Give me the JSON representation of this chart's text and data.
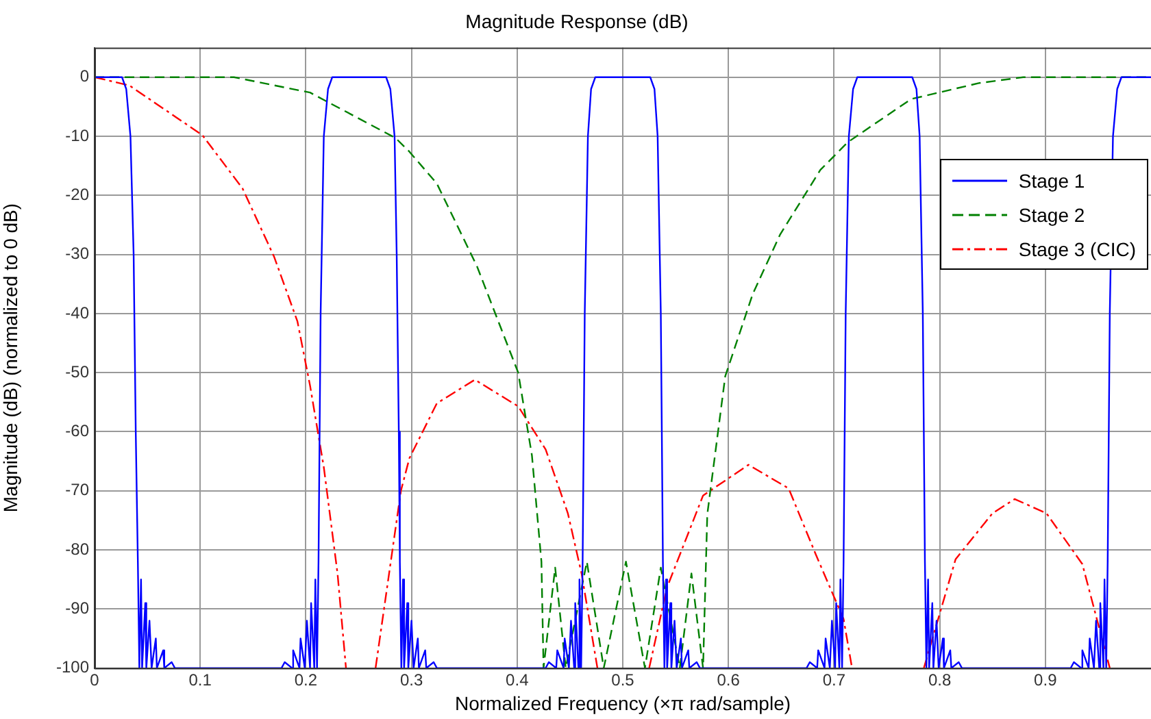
{
  "chart_data": {
    "type": "line",
    "title": "Magnitude Response (dB)",
    "xlabel": "Normalized Frequency (×π rad/sample)",
    "ylabel": "Magnitude (dB) (normalized to 0 dB)",
    "xlim": [
      0,
      1
    ],
    "xticks": [
      0,
      0.1,
      0.2,
      0.3,
      0.4,
      0.5,
      0.6,
      0.7,
      0.8,
      0.9
    ],
    "ylim": [
      -100,
      5
    ],
    "yticks": [
      -100,
      -90,
      -80,
      -70,
      -60,
      -50,
      -40,
      -30,
      -20,
      -10,
      0
    ],
    "grid": true,
    "legend": "top right",
    "marker": "none",
    "series": [
      {
        "name": "Stage 1",
        "color": "#0000ff",
        "line_style": "solid",
        "x": [
          0,
          0.026,
          0.03,
          0.034,
          0.037,
          0.039,
          0.041,
          0.0424,
          0.044,
          0.045,
          0.048,
          0.049,
          0.052,
          0.054,
          0.058,
          0.059,
          0.065,
          0.066,
          0.073,
          0.076,
          0.177,
          0.18,
          0.187,
          0.188,
          0.194,
          0.195,
          0.199,
          0.201,
          0.204,
          0.205,
          0.208,
          0.209,
          0.2106,
          0.212,
          0.214,
          0.217,
          0.221,
          0.225,
          0.276,
          0.28,
          0.284,
          0.286,
          0.288,
          0.289,
          0.2904,
          0.292,
          0.293,
          0.296,
          0.297,
          0.3,
          0.302,
          0.306,
          0.307,
          0.313,
          0.314,
          0.321,
          0.324,
          0.427,
          0.43,
          0.437,
          0.438,
          0.444,
          0.445,
          0.449,
          0.451,
          0.454,
          0.455,
          0.458,
          0.459,
          0.4606,
          0.462,
          0.464,
          0.467,
          0.47,
          0.474,
          0.526,
          0.53,
          0.533,
          0.536,
          0.538,
          0.5394,
          0.541,
          0.542,
          0.545,
          0.546,
          0.549,
          0.551,
          0.555,
          0.556,
          0.562,
          0.563,
          0.57,
          0.573,
          0.674,
          0.677,
          0.684,
          0.685,
          0.691,
          0.692,
          0.696,
          0.698,
          0.701,
          0.702,
          0.705,
          0.706,
          0.7076,
          0.709,
          0.711,
          0.714,
          0.718,
          0.722,
          0.774,
          0.778,
          0.781,
          0.784,
          0.786,
          0.7874,
          0.789,
          0.79,
          0.793,
          0.794,
          0.797,
          0.799,
          0.803,
          0.804,
          0.81,
          0.811,
          0.818,
          0.821,
          0.924,
          0.927,
          0.934,
          0.935,
          0.941,
          0.942,
          0.946,
          0.948,
          0.951,
          0.952,
          0.955,
          0.956,
          0.9576,
          0.959,
          0.961,
          0.964,
          0.968,
          0.972,
          1
        ],
        "values": [
          0,
          0,
          -2,
          -10,
          -30,
          -60,
          -82,
          -100,
          -85,
          -100,
          -89,
          -100,
          -92,
          -100,
          -95,
          -100,
          -97,
          -100,
          -99,
          -100,
          -100,
          -99,
          -100,
          -97,
          -100,
          -95,
          -100,
          -92,
          -100,
          -89,
          -100,
          -85,
          -100,
          -82,
          -40,
          -10,
          -2,
          0,
          0,
          -2,
          -10,
          -30,
          -60,
          -82,
          -100,
          -85,
          -100,
          -89,
          -100,
          -92,
          -100,
          -95,
          -100,
          -97,
          -100,
          -99,
          -100,
          -100,
          -99,
          -100,
          -97,
          -100,
          -95,
          -100,
          -92,
          -100,
          -89,
          -100,
          -85,
          -100,
          -82,
          -40,
          -10,
          -2,
          0,
          0,
          -2,
          -10,
          -40,
          -82,
          -100,
          -85,
          -100,
          -89,
          -100,
          -92,
          -100,
          -95,
          -100,
          -97,
          -100,
          -99,
          -100,
          -100,
          -99,
          -100,
          -97,
          -100,
          -95,
          -100,
          -92,
          -100,
          -89,
          -100,
          -85,
          -100,
          -82,
          -40,
          -10,
          -2,
          0,
          0,
          -2,
          -10,
          -40,
          -82,
          -100,
          -85,
          -100,
          -89,
          -100,
          -92,
          -100,
          -95,
          -100,
          -97,
          -100,
          -99,
          -100,
          -100,
          -99,
          -100,
          -97,
          -100,
          -95,
          -100,
          -92,
          -100,
          -89,
          -100,
          -85,
          -100,
          -82,
          -40,
          -10,
          -2,
          0,
          0
        ]
      },
      {
        "name": "Stage 2",
        "color": "#008000",
        "line_style": "dashed",
        "x": [
          0,
          0.132,
          0.204,
          0.285,
          0.298,
          0.324,
          0.362,
          0.401,
          0.414,
          0.423,
          0.425,
          0.436,
          0.446,
          0.466,
          0.482,
          0.503,
          0.521,
          0.536,
          0.554,
          0.565,
          0.576,
          0.58,
          0.597,
          0.623,
          0.649,
          0.687,
          0.713,
          0.773,
          0.837,
          0.879,
          1
        ],
        "values": [
          0,
          0,
          -2.6,
          -10.3,
          -12.6,
          -18,
          -32,
          -50,
          -64,
          -82,
          -100,
          -83,
          -100,
          -82,
          -100,
          -82,
          -100,
          -83,
          -100,
          -84,
          -100,
          -74,
          -50.6,
          -36.7,
          -26.6,
          -15.7,
          -11,
          -3.7,
          -1,
          0,
          0
        ]
      },
      {
        "name": "Stage 3 (CIC)",
        "color": "#ff0000",
        "line_style": "dashdot",
        "x": [
          0,
          0.033,
          0.102,
          0.14,
          0.17,
          0.192,
          0.204,
          0.217,
          0.23,
          0.238,
          null,
          0.266,
          0.29,
          0.298,
          0.324,
          0.36,
          0.401,
          0.427,
          0.448,
          0.461,
          0.476,
          null,
          0.525,
          0.542,
          0.576,
          0.619,
          0.657,
          0.683,
          0.709,
          0.717,
          null,
          0.785,
          0.815,
          0.85,
          0.871,
          0.901,
          0.935,
          0.961
        ],
        "values": [
          0,
          -1.4,
          -9.8,
          -18.8,
          -30.4,
          -41.3,
          -52.2,
          -66,
          -84,
          -100,
          null,
          -100,
          -70,
          -64.5,
          -55.2,
          -51.2,
          -55.7,
          -63,
          -73.8,
          -84,
          -100,
          null,
          -100,
          -86.3,
          -70.8,
          -65.6,
          -69.6,
          -80.9,
          -91.7,
          -100,
          null,
          -100,
          -81.6,
          -73.8,
          -71.4,
          -73.8,
          -82.4,
          -100
        ]
      }
    ]
  }
}
